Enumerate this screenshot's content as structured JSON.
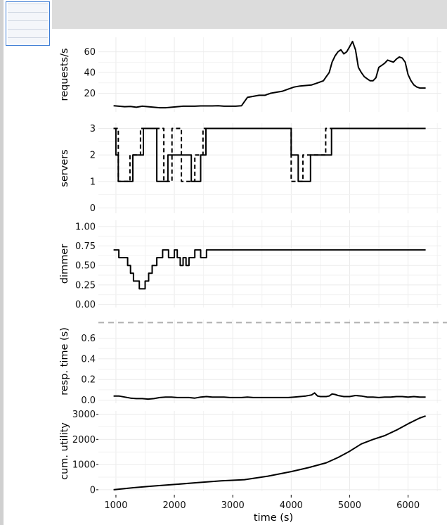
{
  "viewer": {
    "thumbnail_icon": "page-thumbnail"
  },
  "chart_data": [
    {
      "type": "line",
      "ylabel": "requests/s",
      "yticks": [
        20,
        40,
        60
      ],
      "ylim": [
        2,
        74
      ],
      "grid": true,
      "series": [
        {
          "color": "#000000",
          "style": "solid",
          "x": [
            960,
            1050,
            1150,
            1250,
            1350,
            1450,
            1550,
            1650,
            1750,
            1850,
            1950,
            2050,
            2150,
            2250,
            2350,
            2450,
            2550,
            2650,
            2750,
            2850,
            2950,
            3050,
            3150,
            3250,
            3350,
            3450,
            3550,
            3650,
            3750,
            3850,
            3950,
            4050,
            4150,
            4250,
            4350,
            4450,
            4550,
            4600,
            4650,
            4700,
            4750,
            4800,
            4850,
            4900,
            4950,
            5000,
            5050,
            5100,
            5150,
            5200,
            5250,
            5300,
            5350,
            5400,
            5450,
            5500,
            5550,
            5600,
            5650,
            5700,
            5750,
            5800,
            5850,
            5900,
            5950,
            6000,
            6050,
            6100,
            6150,
            6200,
            6250,
            6300
          ],
          "y": [
            8,
            7.5,
            7,
            7.2,
            6.5,
            7.5,
            7,
            6.5,
            6,
            6,
            6.5,
            7,
            7.5,
            7.5,
            7.5,
            7.8,
            7.8,
            7.8,
            8,
            7.5,
            7.5,
            7.5,
            8,
            16,
            17,
            18,
            18,
            20,
            21,
            22,
            24,
            26,
            27,
            27.5,
            28,
            30,
            32,
            36,
            40,
            50,
            56,
            60,
            62,
            58,
            60,
            65,
            70,
            62,
            45,
            40,
            36,
            34,
            32,
            32,
            35,
            45,
            47,
            49,
            52,
            51,
            50,
            53,
            55,
            54,
            50,
            38,
            32,
            28,
            26,
            25,
            25,
            25
          ]
        }
      ]
    },
    {
      "type": "line",
      "ylabel": "servers",
      "yticks": [
        0,
        1,
        2,
        3
      ],
      "ylim": [
        -0.2,
        3.2
      ],
      "grid": true,
      "series": [
        {
          "color": "#000000",
          "style": "solid",
          "x": [
            960,
            1000,
            1000,
            1040,
            1040,
            1100,
            1100,
            1290,
            1290,
            1470,
            1470,
            1700,
            1700,
            1890,
            1890,
            2010,
            2010,
            2290,
            2290,
            2450,
            2450,
            2540,
            2540,
            2590,
            2590,
            4000,
            4000,
            4120,
            4120,
            4330,
            4330,
            4690,
            4690,
            6300
          ],
          "y": [
            3,
            3,
            2,
            2,
            1,
            1,
            1,
            1,
            2,
            2,
            3,
            3,
            1,
            1,
            2,
            2,
            2,
            2,
            1,
            1,
            2,
            2,
            3,
            3,
            3,
            3,
            2,
            2,
            1,
            1,
            2,
            2,
            3,
            3
          ]
        },
        {
          "color": "#000000",
          "style": "dashed",
          "x": [
            960,
            1040,
            1040,
            1240,
            1240,
            1420,
            1420,
            1820,
            1820,
            1960,
            1960,
            2120,
            2120,
            2350,
            2350,
            2490,
            2490,
            2580,
            2580,
            4000,
            4000,
            4200,
            4200,
            4590,
            4590,
            6300
          ],
          "y": [
            3,
            3,
            1,
            1,
            2,
            2,
            3,
            3,
            1,
            1,
            3,
            3,
            1,
            1,
            2,
            2,
            3,
            3,
            3,
            3,
            1,
            1,
            2,
            2,
            3,
            3
          ]
        }
      ]
    },
    {
      "type": "line",
      "ylabel": "dimmer",
      "yticks": [
        0.0,
        0.25,
        0.5,
        0.75,
        1.0
      ],
      "ytick_labels": [
        "0.00",
        "0.25",
        "0.50",
        "0.75",
        "1.00"
      ],
      "ylim": [
        -0.04,
        1.08
      ],
      "grid": true,
      "series": [
        {
          "color": "#000000",
          "style": "solid",
          "x": [
            960,
            1050,
            1050,
            1200,
            1200,
            1250,
            1250,
            1300,
            1300,
            1400,
            1400,
            1500,
            1500,
            1560,
            1560,
            1620,
            1620,
            1700,
            1700,
            1800,
            1800,
            1900,
            1900,
            2000,
            2000,
            2050,
            2050,
            2100,
            2100,
            2150,
            2150,
            2200,
            2200,
            2250,
            2250,
            2350,
            2350,
            2450,
            2450,
            2550,
            2550,
            4300,
            4300,
            6300
          ],
          "y": [
            0.7,
            0.7,
            0.6,
            0.6,
            0.5,
            0.5,
            0.4,
            0.4,
            0.3,
            0.3,
            0.2,
            0.2,
            0.3,
            0.3,
            0.4,
            0.4,
            0.5,
            0.5,
            0.6,
            0.6,
            0.7,
            0.7,
            0.6,
            0.6,
            0.7,
            0.7,
            0.6,
            0.6,
            0.5,
            0.5,
            0.6,
            0.6,
            0.5,
            0.5,
            0.6,
            0.6,
            0.7,
            0.7,
            0.6,
            0.6,
            0.7,
            0.7,
            0.7,
            0.7
          ]
        }
      ]
    },
    {
      "type": "line",
      "ylabel": "resp. time (s)",
      "yticks": [
        0.0,
        0.2,
        0.4,
        0.6
      ],
      "ytick_labels": [
        "0.0",
        "0.2",
        "0.4",
        "0.6"
      ],
      "ylim": [
        -0.03,
        0.78
      ],
      "grid": true,
      "reference_line": {
        "y": 0.75,
        "color": "#b0b0b0",
        "style": "dashed"
      },
      "series": [
        {
          "color": "#000000",
          "style": "solid",
          "x": [
            960,
            1050,
            1150,
            1250,
            1350,
            1450,
            1550,
            1650,
            1750,
            1850,
            1950,
            2050,
            2150,
            2250,
            2350,
            2450,
            2550,
            2650,
            2750,
            2850,
            2950,
            3050,
            3150,
            3250,
            3350,
            3450,
            3550,
            3650,
            3750,
            3850,
            3950,
            4050,
            4150,
            4250,
            4350,
            4400,
            4450,
            4500,
            4600,
            4650,
            4700,
            4750,
            4800,
            4900,
            5000,
            5100,
            5200,
            5300,
            5400,
            5500,
            5600,
            5700,
            5800,
            5900,
            6000,
            6100,
            6200,
            6300
          ],
          "y": [
            0.04,
            0.04,
            0.03,
            0.02,
            0.015,
            0.015,
            0.01,
            0.015,
            0.025,
            0.03,
            0.03,
            0.025,
            0.025,
            0.025,
            0.02,
            0.03,
            0.035,
            0.03,
            0.03,
            0.03,
            0.025,
            0.025,
            0.025,
            0.03,
            0.025,
            0.025,
            0.025,
            0.025,
            0.025,
            0.025,
            0.025,
            0.03,
            0.035,
            0.04,
            0.05,
            0.07,
            0.04,
            0.035,
            0.035,
            0.04,
            0.06,
            0.055,
            0.045,
            0.035,
            0.035,
            0.045,
            0.04,
            0.03,
            0.03,
            0.025,
            0.03,
            0.03,
            0.035,
            0.035,
            0.03,
            0.035,
            0.03,
            0.03
          ]
        }
      ]
    },
    {
      "type": "line",
      "ylabel": "cum. utility",
      "xlabel": "time (s)",
      "xticks": [
        1000,
        2000,
        3000,
        4000,
        5000,
        6000
      ],
      "yticks": [
        0,
        1000,
        2000,
        3000
      ],
      "ylim": [
        -60,
        3130
      ],
      "grid": true,
      "series": [
        {
          "color": "#000000",
          "style": "solid",
          "x": [
            960,
            1300,
            1600,
            2000,
            2400,
            2800,
            3200,
            3600,
            4000,
            4300,
            4600,
            4800,
            5000,
            5200,
            5400,
            5600,
            5800,
            6000,
            6200,
            6300
          ],
          "y": [
            0,
            80,
            140,
            210,
            280,
            350,
            400,
            540,
            720,
            880,
            1070,
            1280,
            1530,
            1820,
            2000,
            2150,
            2370,
            2620,
            2850,
            2930
          ]
        }
      ]
    }
  ],
  "x_axis": {
    "range": [
      700,
      6570
    ],
    "ticks": [
      1000,
      2000,
      3000,
      4000,
      5000,
      6000
    ],
    "label": "time (s)"
  }
}
